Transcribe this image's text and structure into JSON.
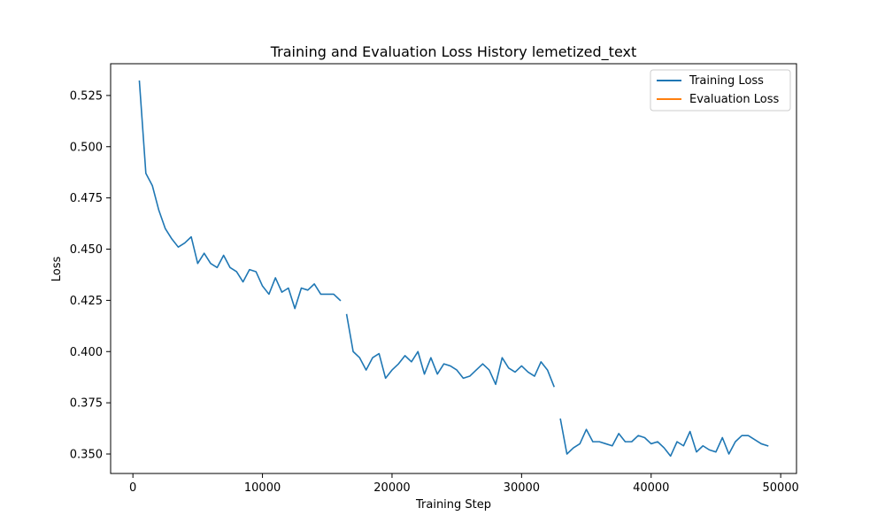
{
  "chart_data": {
    "type": "line",
    "title": "Training and Evaluation Loss History lemetized_text",
    "xlabel": "Training Step",
    "ylabel": "Loss",
    "xlim": [
      -1720,
      51220
    ],
    "ylim": [
      0.3405,
      0.5405
    ],
    "x_ticks": [
      0,
      10000,
      20000,
      30000,
      40000,
      50000
    ],
    "y_ticks": [
      0.35,
      0.375,
      0.4,
      0.425,
      0.45,
      0.475,
      0.5,
      0.525
    ],
    "y_tick_labels": [
      "0.350",
      "0.375",
      "0.400",
      "0.425",
      "0.450",
      "0.475",
      "0.500",
      "0.525"
    ],
    "grid": false,
    "legend_position": "top-right",
    "series": [
      {
        "name": "Training Loss",
        "color": "#1f77b4",
        "segments": [
          [
            [
              500,
              0.532
            ],
            [
              1000,
              0.487
            ],
            [
              1500,
              0.481
            ],
            [
              2000,
              0.469
            ],
            [
              2500,
              0.46
            ],
            [
              3000,
              0.455
            ],
            [
              3500,
              0.451
            ],
            [
              4000,
              0.453
            ],
            [
              4500,
              0.456
            ],
            [
              5000,
              0.443
            ],
            [
              5500,
              0.448
            ],
            [
              6000,
              0.443
            ],
            [
              6500,
              0.441
            ],
            [
              7000,
              0.447
            ],
            [
              7500,
              0.441
            ],
            [
              8000,
              0.439
            ],
            [
              8500,
              0.434
            ],
            [
              9000,
              0.44
            ],
            [
              9500,
              0.439
            ],
            [
              10000,
              0.432
            ],
            [
              10500,
              0.428
            ],
            [
              11000,
              0.436
            ],
            [
              11500,
              0.429
            ],
            [
              12000,
              0.431
            ],
            [
              12500,
              0.421
            ],
            [
              13000,
              0.431
            ],
            [
              13500,
              0.43
            ],
            [
              14000,
              0.433
            ],
            [
              14500,
              0.428
            ],
            [
              15000,
              0.428
            ],
            [
              15500,
              0.428
            ],
            [
              16000,
              0.425
            ]
          ],
          [
            [
              16500,
              0.418
            ],
            [
              17000,
              0.4
            ],
            [
              17500,
              0.397
            ],
            [
              18000,
              0.391
            ],
            [
              18500,
              0.397
            ],
            [
              19000,
              0.399
            ],
            [
              19500,
              0.387
            ],
            [
              20000,
              0.391
            ],
            [
              20500,
              0.394
            ],
            [
              21000,
              0.398
            ],
            [
              21500,
              0.395
            ],
            [
              22000,
              0.4
            ],
            [
              22500,
              0.389
            ],
            [
              23000,
              0.397
            ],
            [
              23500,
              0.389
            ],
            [
              24000,
              0.394
            ],
            [
              24500,
              0.393
            ],
            [
              25000,
              0.391
            ],
            [
              25500,
              0.387
            ],
            [
              26000,
              0.388
            ],
            [
              26500,
              0.391
            ],
            [
              27000,
              0.394
            ],
            [
              27500,
              0.391
            ],
            [
              28000,
              0.384
            ],
            [
              28500,
              0.397
            ],
            [
              29000,
              0.392
            ],
            [
              29500,
              0.39
            ],
            [
              30000,
              0.393
            ],
            [
              30500,
              0.39
            ],
            [
              31000,
              0.388
            ],
            [
              31500,
              0.395
            ],
            [
              32000,
              0.391
            ],
            [
              32500,
              0.383
            ]
          ],
          [
            [
              33000,
              0.367
            ],
            [
              33500,
              0.35
            ],
            [
              34000,
              0.353
            ],
            [
              34500,
              0.355
            ],
            [
              35000,
              0.362
            ],
            [
              35500,
              0.356
            ],
            [
              36000,
              0.356
            ],
            [
              36500,
              0.355
            ],
            [
              37000,
              0.354
            ],
            [
              37500,
              0.36
            ],
            [
              38000,
              0.356
            ],
            [
              38500,
              0.356
            ],
            [
              39000,
              0.359
            ],
            [
              39500,
              0.358
            ],
            [
              40000,
              0.355
            ],
            [
              40500,
              0.356
            ],
            [
              41000,
              0.353
            ],
            [
              41500,
              0.349
            ],
            [
              42000,
              0.356
            ],
            [
              42500,
              0.354
            ],
            [
              43000,
              0.361
            ],
            [
              43500,
              0.351
            ],
            [
              44000,
              0.354
            ],
            [
              44500,
              0.352
            ],
            [
              45000,
              0.351
            ],
            [
              45500,
              0.358
            ],
            [
              46000,
              0.35
            ],
            [
              46500,
              0.356
            ],
            [
              47000,
              0.359
            ],
            [
              47500,
              0.359
            ],
            [
              48000,
              0.357
            ],
            [
              48500,
              0.355
            ],
            [
              49000,
              0.354
            ]
          ]
        ]
      },
      {
        "name": "Evaluation Loss",
        "color": "#ff7f0e",
        "segments": []
      }
    ]
  }
}
